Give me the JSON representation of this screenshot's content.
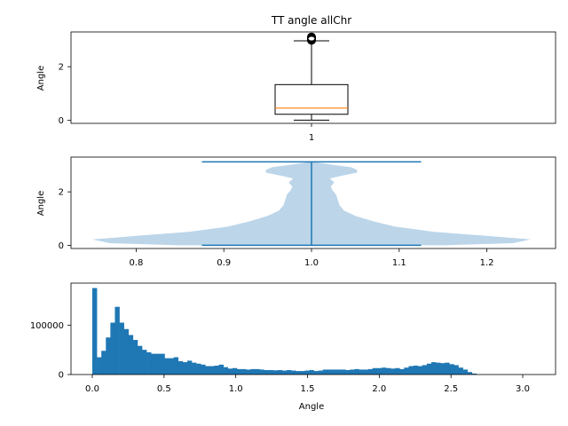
{
  "chart_data": [
    {
      "type": "box",
      "title": "TT angle allChr",
      "ylabel": "Angle",
      "xlabel": "",
      "xtick_labels": [
        "1"
      ],
      "ylim": [
        -0.12,
        3.3
      ],
      "yticks": [
        0,
        2
      ],
      "box": {
        "position": 1,
        "whisker_low": 0.0,
        "q1": 0.22,
        "median": 0.45,
        "q3": 1.33,
        "whisker_high": 2.97,
        "outliers": [
          2.99,
          3.01,
          3.03,
          3.05,
          3.07,
          3.09,
          3.11
        ]
      },
      "colors": {
        "median": "#ff7f0e",
        "box": "#000000"
      }
    },
    {
      "type": "violin",
      "ylabel": "Angle",
      "xlim": [
        0.75,
        1.25
      ],
      "xticks": [
        "0.8",
        "0.9",
        "1.0",
        "1.1",
        "1.2"
      ],
      "ylim": [
        -0.12,
        3.3
      ],
      "yticks": [
        0,
        2
      ],
      "position": 1.0,
      "extrema": [
        0.0,
        3.12
      ],
      "density_halfwidth_profile": [
        {
          "y": 0.0,
          "w": 0.15
        },
        {
          "y": 0.08,
          "w": 0.23
        },
        {
          "y": 0.22,
          "w": 0.25
        },
        {
          "y": 0.35,
          "w": 0.2
        },
        {
          "y": 0.5,
          "w": 0.14
        },
        {
          "y": 0.7,
          "w": 0.095
        },
        {
          "y": 0.9,
          "w": 0.07
        },
        {
          "y": 1.1,
          "w": 0.05
        },
        {
          "y": 1.3,
          "w": 0.037
        },
        {
          "y": 1.5,
          "w": 0.032
        },
        {
          "y": 1.7,
          "w": 0.03
        },
        {
          "y": 1.9,
          "w": 0.028
        },
        {
          "y": 2.05,
          "w": 0.024
        },
        {
          "y": 2.2,
          "w": 0.022
        },
        {
          "y": 2.35,
          "w": 0.026
        },
        {
          "y": 2.5,
          "w": 0.021
        },
        {
          "y": 2.6,
          "w": 0.034
        },
        {
          "y": 2.72,
          "w": 0.052
        },
        {
          "y": 2.82,
          "w": 0.052
        },
        {
          "y": 2.92,
          "w": 0.045
        },
        {
          "y": 3.02,
          "w": 0.022
        },
        {
          "y": 3.12,
          "w": 0.0
        }
      ],
      "colors": {
        "body": "#bcd5e9",
        "lines": "#1f77b4"
      }
    },
    {
      "type": "histogram",
      "xlabel": "Angle",
      "xlim": [
        -0.15,
        3.25
      ],
      "xticks": [
        "0.0",
        "0.5",
        "1.0",
        "1.5",
        "2.0",
        "2.5",
        "3.0"
      ],
      "ylim": [
        0,
        185000
      ],
      "yticks": [
        "0",
        "100000"
      ],
      "bin_start": 0.0,
      "bin_width": 0.0315,
      "values": [
        175000,
        35000,
        48000,
        75000,
        105000,
        137000,
        105000,
        92000,
        80000,
        70000,
        58000,
        50000,
        45000,
        42000,
        42000,
        42000,
        33000,
        33000,
        35000,
        27000,
        25000,
        28000,
        24000,
        22000,
        20000,
        17000,
        17000,
        18000,
        20000,
        15000,
        12000,
        13000,
        11000,
        11000,
        10000,
        11000,
        11000,
        10000,
        9000,
        9000,
        8500,
        9000,
        8000,
        9000,
        8000,
        7000,
        7000,
        8000,
        9000,
        7000,
        8000,
        10000,
        10000,
        10000,
        10000,
        10000,
        9000,
        10000,
        11000,
        10000,
        10000,
        11000,
        13000,
        13000,
        14000,
        13000,
        12000,
        13000,
        11000,
        14000,
        17000,
        18000,
        17000,
        19000,
        22000,
        25000,
        24000,
        23000,
        24000,
        21000,
        19000,
        14000,
        10000,
        5000,
        2000
      ],
      "colors": {
        "bars": "#1f77b4"
      }
    }
  ]
}
